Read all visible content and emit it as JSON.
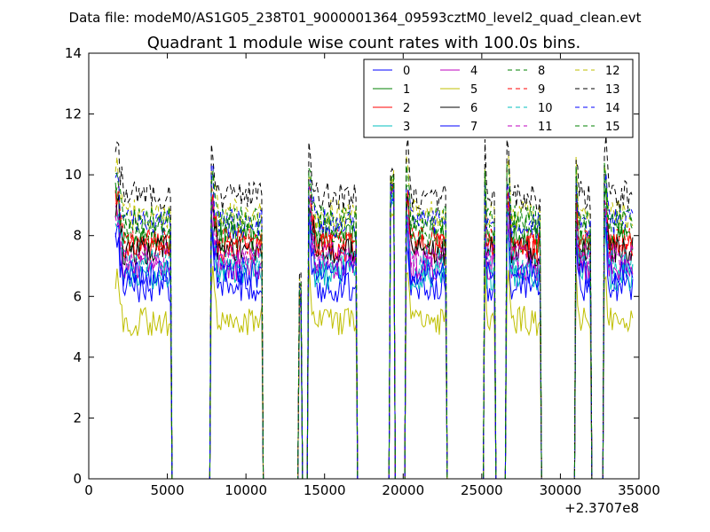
{
  "header": {
    "data_file": "Data file: modeM0/AS1G05_238T01_9000001364_09593cztM0_level2_quad_clean.evt"
  },
  "chart_data": {
    "type": "line",
    "title": "Quadrant 1 module wise count rates with 100.0s bins.",
    "xlabel": "",
    "ylabel": "",
    "xlim": [
      0,
      35000
    ],
    "ylim": [
      0,
      14
    ],
    "x_offset_label": "+2.3707e8",
    "x_ticks": [
      0,
      5000,
      10000,
      15000,
      20000,
      25000,
      30000,
      35000
    ],
    "x_tick_labels": [
      "0",
      "5000",
      "10000",
      "15000",
      "20000",
      "25000",
      "30000",
      "35000"
    ],
    "y_ticks": [
      0,
      2,
      4,
      6,
      8,
      10,
      12,
      14
    ],
    "y_tick_labels": [
      "0",
      "2",
      "4",
      "6",
      "8",
      "10",
      "12",
      "14"
    ],
    "grid": false,
    "legend_position": "top-right",
    "bin_width": 100,
    "x_start": 1700,
    "x_end": 34600,
    "segments": [
      {
        "start": 1700,
        "end": 5200,
        "kind": "high"
      },
      {
        "start": 7800,
        "end": 11000,
        "kind": "high"
      },
      {
        "start": 13400,
        "end": 13500,
        "kind": "spike",
        "level": 6.0
      },
      {
        "start": 14000,
        "end": 17000,
        "kind": "high"
      },
      {
        "start": 19200,
        "end": 19400,
        "kind": "spike",
        "level": 9.5
      },
      {
        "start": 20200,
        "end": 22700,
        "kind": "high"
      },
      {
        "start": 25200,
        "end": 25800,
        "kind": "high"
      },
      {
        "start": 26600,
        "end": 28700,
        "kind": "high"
      },
      {
        "start": 31000,
        "end": 31900,
        "kind": "high"
      },
      {
        "start": 32800,
        "end": 34600,
        "kind": "high"
      }
    ],
    "series": [
      {
        "name": "0",
        "color": "#0000ff",
        "dash": "solid",
        "level": 6.3
      },
      {
        "name": "1",
        "color": "#008000",
        "dash": "solid",
        "level": 7.9
      },
      {
        "name": "2",
        "color": "#ff0000",
        "dash": "solid",
        "level": 7.6
      },
      {
        "name": "3",
        "color": "#00bfbf",
        "dash": "solid",
        "level": 6.7
      },
      {
        "name": "4",
        "color": "#bf00bf",
        "dash": "solid",
        "level": 7.0
      },
      {
        "name": "5",
        "color": "#bfbf00",
        "dash": "solid",
        "level": 5.2
      },
      {
        "name": "6",
        "color": "#000000",
        "dash": "solid",
        "level": 7.5
      },
      {
        "name": "7",
        "color": "#0000ff",
        "dash": "solid",
        "level": 6.8
      },
      {
        "name": "8",
        "color": "#008000",
        "dash": "dashed",
        "level": 8.2
      },
      {
        "name": "9",
        "color": "#ff0000",
        "dash": "dashed",
        "level": 7.8
      },
      {
        "name": "10",
        "color": "#00bfbf",
        "dash": "dashed",
        "level": 7.1
      },
      {
        "name": "11",
        "color": "#bf00bf",
        "dash": "dashed",
        "level": 7.3
      },
      {
        "name": "12",
        "color": "#bfbf00",
        "dash": "dashed",
        "level": 8.7
      },
      {
        "name": "13",
        "color": "#000000",
        "dash": "dashed",
        "level": 9.3
      },
      {
        "name": "14",
        "color": "#0000ff",
        "dash": "dashed",
        "level": 8.4
      },
      {
        "name": "15",
        "color": "#008000",
        "dash": "dashed",
        "level": 8.5
      }
    ]
  }
}
